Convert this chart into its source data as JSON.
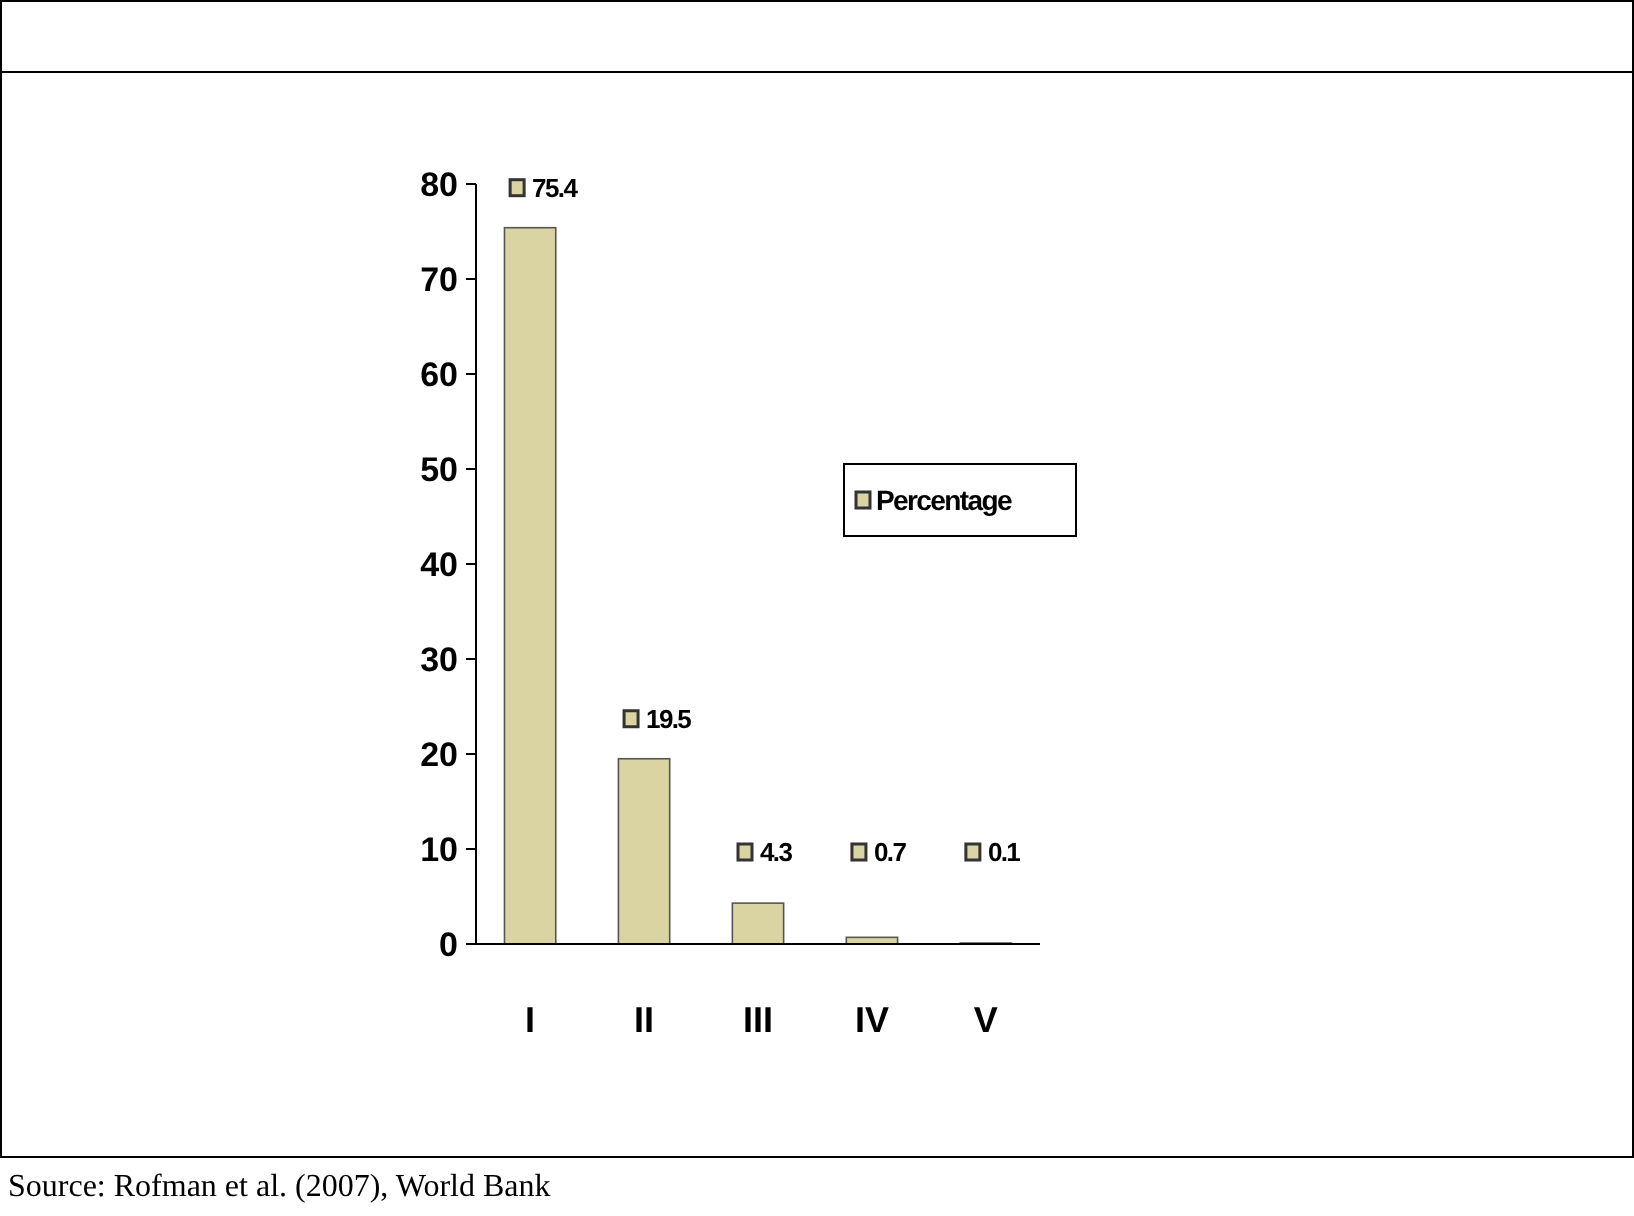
{
  "chart_data": {
    "type": "bar",
    "categories": [
      "I",
      "II",
      "III",
      "IV",
      "V"
    ],
    "series": [
      {
        "name": "Percentage",
        "color": "#d9d4a2",
        "values": [
          75.4,
          19.5,
          4.3,
          0.7,
          0.1
        ]
      }
    ],
    "ylim": [
      0,
      80
    ],
    "yticks": [
      0,
      10,
      20,
      30,
      40,
      50,
      60,
      70,
      80
    ],
    "data_labels": true,
    "legend": "right",
    "grid": false,
    "annotations": [
      "Source: Rofman et al. (2007), World Bank"
    ]
  }
}
